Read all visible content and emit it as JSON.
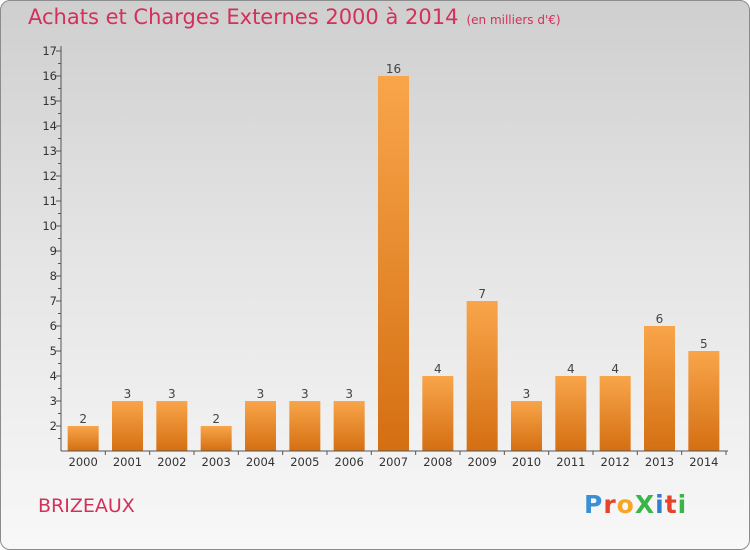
{
  "header": {
    "title": "Achats et Charges Externes 2000 à 2014",
    "unit": "(en milliers d'€)"
  },
  "footer": {
    "commune": "BRIZEAUX",
    "logo": {
      "text": "ProXiti",
      "colors": [
        "#3a8fd6",
        "#e8432a",
        "#f5a623",
        "#3ab54a",
        "#2f7fd0",
        "#e8432a",
        "#3ab54a"
      ]
    }
  },
  "colors": {
    "accent": "#d3305a",
    "bar_light": "#f9a54a",
    "bar_dark": "#d46f12",
    "axis": "#555555"
  },
  "chart_data": {
    "type": "bar",
    "title": "Achats et Charges Externes 2000 à 2014",
    "subtitle": "(en milliers d'€)",
    "categories": [
      "2000",
      "2001",
      "2002",
      "2003",
      "2004",
      "2005",
      "2006",
      "2007",
      "2008",
      "2009",
      "2010",
      "2011",
      "2012",
      "2013",
      "2014"
    ],
    "values": [
      2,
      3,
      3,
      2,
      3,
      3,
      3,
      16,
      4,
      7,
      3,
      4,
      4,
      6,
      5
    ],
    "ylim": [
      1,
      17
    ],
    "yticks": [
      2,
      3,
      4,
      5,
      6,
      7,
      8,
      9,
      10,
      11,
      12,
      13,
      14,
      15,
      16,
      17
    ],
    "grid": false,
    "data_labels": true
  }
}
